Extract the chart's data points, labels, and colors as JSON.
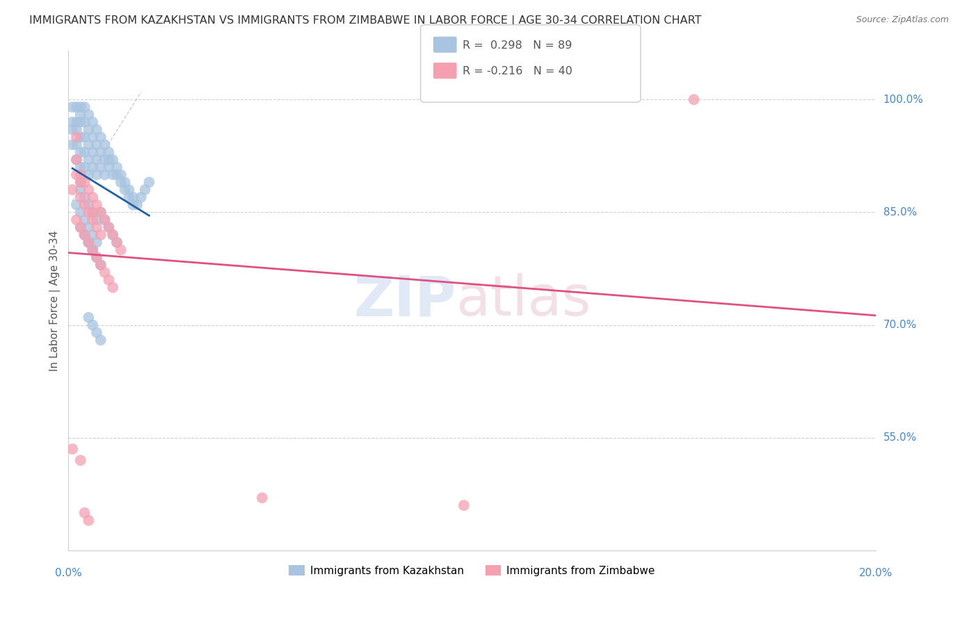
{
  "title": "IMMIGRANTS FROM KAZAKHSTAN VS IMMIGRANTS FROM ZIMBABWE IN LABOR FORCE | AGE 30-34 CORRELATION CHART",
  "source": "Source: ZipAtlas.com",
  "ylabel": "In Labor Force | Age 30-34",
  "xlim": [
    0.0,
    0.2
  ],
  "ylim": [
    0.4,
    1.065
  ],
  "ytick_vals": [
    0.55,
    0.7,
    0.85,
    1.0
  ],
  "ytick_labels": [
    "55.0%",
    "70.0%",
    "85.0%",
    "100.0%"
  ],
  "kazakhstan_color": "#a8c4e0",
  "zimbabwe_color": "#f4a0b0",
  "kazakhstan_line_color": "#2060a0",
  "zimbabwe_line_color": "#e05080",
  "background_color": "#ffffff",
  "grid_color": "#d0d0d0",
  "title_color": "#333333",
  "axis_label_color": "#555555",
  "right_tick_color": "#4488cc",
  "bottom_tick_color": "#4488cc",
  "kazakhstan_x": [
    0.001,
    0.001,
    0.001,
    0.001,
    0.002,
    0.002,
    0.002,
    0.002,
    0.002,
    0.003,
    0.003,
    0.003,
    0.003,
    0.003,
    0.003,
    0.003,
    0.004,
    0.004,
    0.004,
    0.004,
    0.004,
    0.005,
    0.005,
    0.005,
    0.005,
    0.005,
    0.006,
    0.006,
    0.006,
    0.006,
    0.007,
    0.007,
    0.007,
    0.007,
    0.008,
    0.008,
    0.008,
    0.009,
    0.009,
    0.009,
    0.01,
    0.01,
    0.01,
    0.011,
    0.011,
    0.012,
    0.012,
    0.013,
    0.013,
    0.014,
    0.014,
    0.015,
    0.015,
    0.016,
    0.016,
    0.017,
    0.018,
    0.019,
    0.02,
    0.002,
    0.003,
    0.004,
    0.005,
    0.006,
    0.007,
    0.004,
    0.005,
    0.006,
    0.007,
    0.008,
    0.003,
    0.004,
    0.005,
    0.006,
    0.005,
    0.006,
    0.007,
    0.008,
    0.003,
    0.004,
    0.005,
    0.006,
    0.007,
    0.008,
    0.009,
    0.01,
    0.011,
    0.012
  ],
  "kazakhstan_y": [
    0.99,
    0.97,
    0.96,
    0.94,
    0.99,
    0.97,
    0.96,
    0.94,
    0.92,
    0.99,
    0.98,
    0.97,
    0.95,
    0.93,
    0.91,
    0.89,
    0.99,
    0.97,
    0.95,
    0.93,
    0.91,
    0.98,
    0.96,
    0.94,
    0.92,
    0.9,
    0.97,
    0.95,
    0.93,
    0.91,
    0.96,
    0.94,
    0.92,
    0.9,
    0.95,
    0.93,
    0.91,
    0.94,
    0.92,
    0.9,
    0.93,
    0.92,
    0.91,
    0.92,
    0.9,
    0.91,
    0.9,
    0.9,
    0.89,
    0.89,
    0.88,
    0.88,
    0.87,
    0.87,
    0.86,
    0.86,
    0.87,
    0.88,
    0.89,
    0.86,
    0.85,
    0.84,
    0.83,
    0.82,
    0.81,
    0.82,
    0.81,
    0.8,
    0.79,
    0.78,
    0.83,
    0.82,
    0.81,
    0.8,
    0.71,
    0.7,
    0.69,
    0.68,
    0.88,
    0.87,
    0.86,
    0.85,
    0.84,
    0.85,
    0.84,
    0.83,
    0.82,
    0.81
  ],
  "zimbabwe_x": [
    0.001,
    0.002,
    0.002,
    0.003,
    0.003,
    0.004,
    0.004,
    0.005,
    0.005,
    0.006,
    0.006,
    0.007,
    0.007,
    0.008,
    0.008,
    0.009,
    0.01,
    0.011,
    0.012,
    0.013,
    0.002,
    0.003,
    0.004,
    0.005,
    0.006,
    0.007,
    0.008,
    0.009,
    0.01,
    0.011,
    0.001,
    0.003,
    0.048,
    0.098,
    0.004,
    0.005,
    0.155,
    0.003,
    0.002,
    0.006
  ],
  "zimbabwe_y": [
    0.88,
    0.92,
    0.95,
    0.87,
    0.9,
    0.86,
    0.89,
    0.85,
    0.88,
    0.84,
    0.87,
    0.83,
    0.86,
    0.82,
    0.85,
    0.84,
    0.83,
    0.82,
    0.81,
    0.8,
    0.84,
    0.83,
    0.82,
    0.81,
    0.8,
    0.79,
    0.78,
    0.77,
    0.76,
    0.75,
    0.535,
    0.52,
    0.47,
    0.46,
    0.45,
    0.44,
    1.0,
    0.89,
    0.9,
    0.85
  ]
}
